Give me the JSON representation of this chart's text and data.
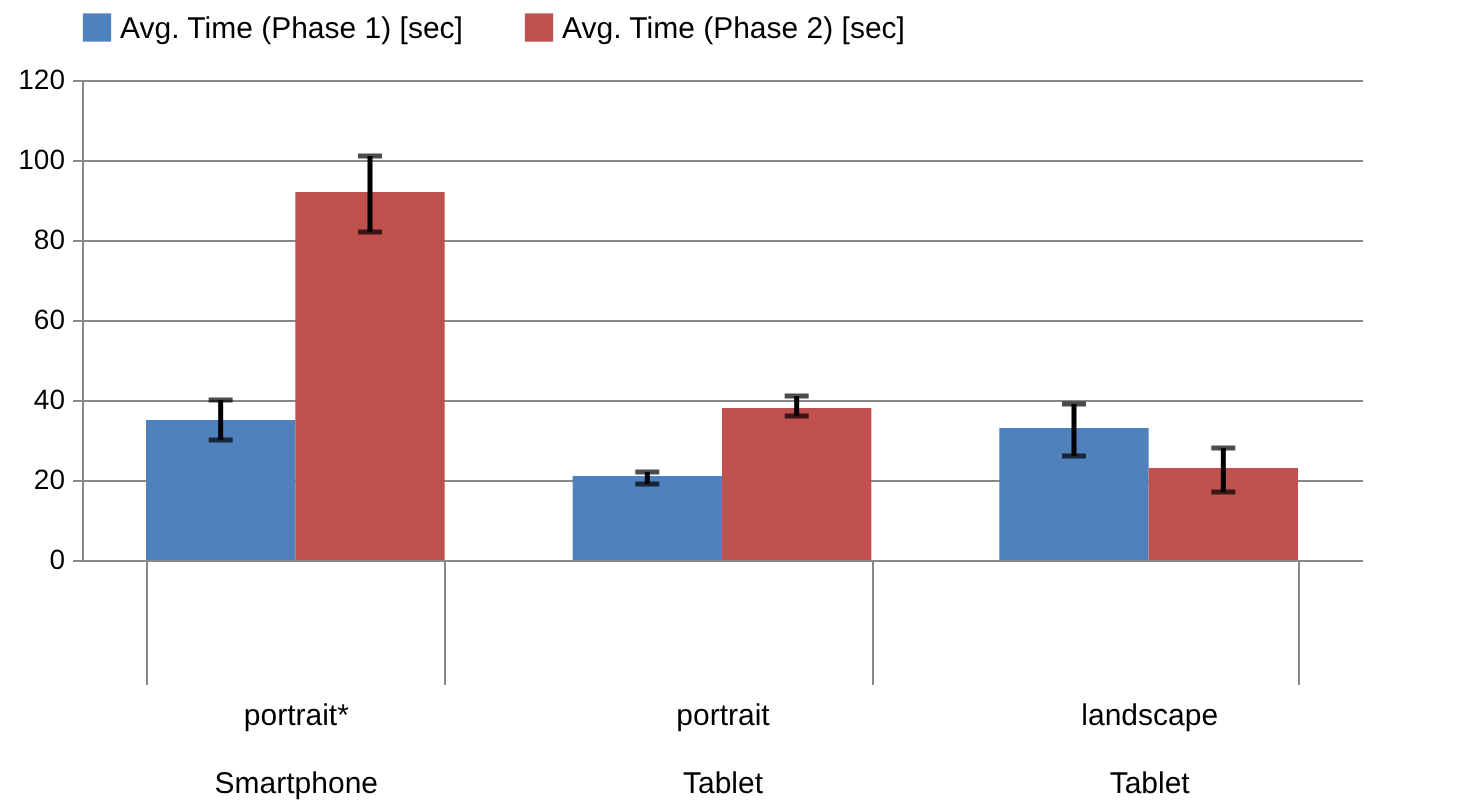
{
  "chart_data": {
    "type": "bar",
    "categories": [
      "portrait*\nSmartphone",
      "portrait\nTablet",
      "landscape\nTablet"
    ],
    "series": [
      {
        "name": "Avg. Time (Phase 1) [sec]",
        "color": "#4f81bd",
        "values": [
          35,
          21,
          33
        ],
        "errors": [
          [
            30,
            40
          ],
          [
            19,
            22
          ],
          [
            26,
            39
          ]
        ]
      },
      {
        "name": "Avg. Time (Phase 2) [sec]",
        "color": "#c0504d",
        "values": [
          92,
          38,
          23
        ],
        "errors": [
          [
            82,
            101
          ],
          [
            36,
            41
          ],
          [
            17,
            28
          ]
        ]
      }
    ],
    "ylim": [
      0,
      120
    ],
    "yticks": [
      0,
      20,
      40,
      60,
      80,
      100,
      120
    ],
    "grid": "y",
    "legend": "top"
  }
}
